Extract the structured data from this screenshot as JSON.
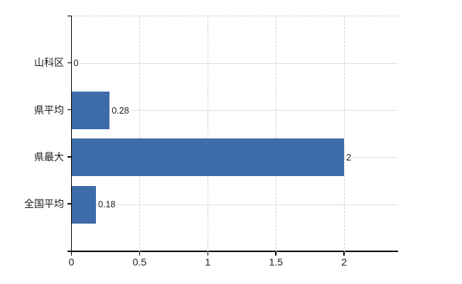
{
  "chart_data": {
    "type": "bar",
    "orientation": "horizontal",
    "categories": [
      "山科区",
      "県平均",
      "県最大",
      "全国平均"
    ],
    "values": [
      0,
      0.28,
      2,
      0.18
    ],
    "value_labels": [
      "0",
      "0.28",
      "2",
      "0.18"
    ],
    "x_ticks": [
      0,
      0.5,
      1,
      1.5,
      2
    ],
    "x_tick_labels": [
      "0",
      "0.5",
      "1",
      "1.5",
      "2"
    ],
    "xlim": [
      0,
      2.4
    ],
    "title": "",
    "legend": "none",
    "grid": {
      "horizontal": "solid-at-category-centers",
      "vertical": "dashed-at-ticks",
      "plot_top_border": "dashed"
    },
    "colors": {
      "bar": "#3e6cab",
      "axis": "#000000",
      "text": "#1a1a1a",
      "grid_horizontal": "#dbe0d8",
      "grid_vertical": "#d2cdd2",
      "background": "#ffffff"
    }
  }
}
